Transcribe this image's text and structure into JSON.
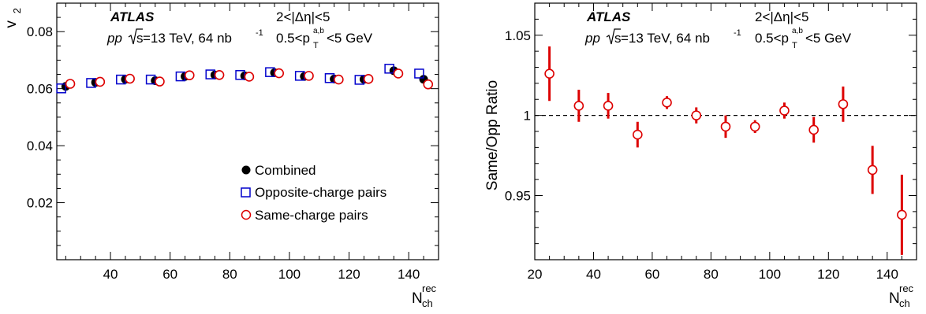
{
  "chart_data": [
    {
      "type": "scatter",
      "ylabel": "v",
      "ylabel_sub": "2",
      "xlabel": "N",
      "xlabel_sup": "rec",
      "xlabel_sub": "ch",
      "xlim": [
        22,
        150
      ],
      "ylim": [
        0,
        0.09
      ],
      "xticks": [
        40,
        60,
        80,
        100,
        120,
        140
      ],
      "yticks": [
        0.02,
        0.04,
        0.06,
        0.08
      ],
      "ytick_labels": [
        "0.02",
        "0.04",
        "0.06",
        "0.08"
      ],
      "annotations": {
        "experiment": "ATLAS",
        "dataset_pp": "pp",
        "dataset_energy": "s",
        "dataset_rest": "=13 TeV, 64 nb",
        "dataset_sup": "-1",
        "deta": "2<|Δη|<5",
        "pt_pre": "0.5<p",
        "pt_sup": "a,b",
        "pt_sub": "T",
        "pt_post": "<5 GeV"
      },
      "legend_position": "bottom-center",
      "series": [
        {
          "name": "Combined",
          "marker": "filled-circle",
          "color": "#000000",
          "x": [
            25,
            35,
            45,
            55,
            65,
            75,
            85,
            95,
            105,
            115,
            125,
            135,
            145
          ],
          "y": [
            0.0608,
            0.0622,
            0.0633,
            0.0628,
            0.0643,
            0.0648,
            0.0645,
            0.0656,
            0.0643,
            0.0634,
            0.0633,
            0.0663,
            0.0633
          ]
        },
        {
          "name": "Opposite-charge pairs",
          "marker": "open-square",
          "color": "#0000cc",
          "x": [
            25,
            35,
            45,
            55,
            65,
            75,
            85,
            95,
            105,
            115,
            125,
            135,
            145
          ],
          "y": [
            0.0601,
            0.062,
            0.0632,
            0.0632,
            0.0643,
            0.065,
            0.0648,
            0.0658,
            0.0645,
            0.0637,
            0.0631,
            0.067,
            0.0653
          ]
        },
        {
          "name": "Same-charge pairs",
          "marker": "open-circle",
          "color": "#dd0000",
          "x": [
            25,
            35,
            45,
            55,
            65,
            75,
            85,
            95,
            105,
            115,
            125,
            135,
            145
          ],
          "y": [
            0.0617,
            0.0624,
            0.0635,
            0.0625,
            0.0647,
            0.0648,
            0.0642,
            0.0654,
            0.0645,
            0.0632,
            0.0634,
            0.0653,
            0.0615
          ]
        }
      ]
    },
    {
      "type": "scatter",
      "ylabel": "Same/Opp Ratio",
      "xlabel": "N",
      "xlabel_sup": "rec",
      "xlabel_sub": "ch",
      "xlim": [
        20,
        150
      ],
      "ylim": [
        0.91,
        1.07
      ],
      "xticks": [
        20,
        40,
        60,
        80,
        100,
        120,
        140
      ],
      "yticks": [
        0.95,
        1.0,
        1.05
      ],
      "ytick_labels": [
        "0.95",
        "1",
        "1.05"
      ],
      "reference_line": 1.0,
      "annotations": {
        "experiment": "ATLAS",
        "dataset_pp": "pp",
        "dataset_energy": "s",
        "dataset_rest": "=13 TeV, 64 nb",
        "dataset_sup": "-1",
        "deta": "2<|Δη|<5",
        "pt_pre": "0.5<p",
        "pt_sup": "a,b",
        "pt_sub": "T",
        "pt_post": "<5 GeV"
      },
      "series": [
        {
          "marker": "open-circle",
          "color": "#dd0000",
          "x": [
            25,
            35,
            45,
            55,
            65,
            75,
            85,
            95,
            105,
            115,
            125,
            135,
            145
          ],
          "y": [
            1.026,
            1.006,
            1.006,
            0.988,
            1.008,
            1.0,
            0.993,
            0.993,
            1.003,
            0.991,
            1.007,
            0.966,
            0.938
          ],
          "err": [
            0.017,
            0.01,
            0.008,
            0.008,
            0.004,
            0.005,
            0.007,
            0.004,
            0.005,
            0.008,
            0.011,
            0.015,
            0.025
          ]
        }
      ]
    }
  ]
}
